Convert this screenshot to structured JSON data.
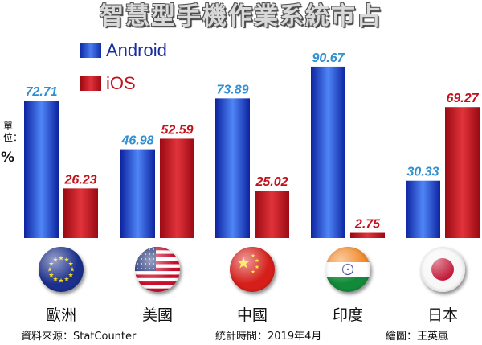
{
  "title": "智慧型手機作業系統市占",
  "unit": {
    "label": "單位：",
    "value": "%"
  },
  "colors": {
    "android": "#2b4fd6",
    "ios": "#c4121c",
    "android_label": "#2f8fd0",
    "ios_label": "#c4121c"
  },
  "footer": {
    "source": "資料來源：StatCounter",
    "date": "統計時間：2019年4月",
    "credit": "繪圖：王英嵐"
  },
  "chart_data": {
    "type": "bar",
    "title": "智慧型手機作業系統市占",
    "ylabel": "單位：%",
    "categories": [
      "歐洲",
      "美國",
      "中國",
      "印度",
      "日本"
    ],
    "series": [
      {
        "name": "Android",
        "values": [
          72.71,
          46.98,
          73.89,
          90.67,
          30.33
        ],
        "labels": [
          "72.71",
          "46.98",
          "73.89",
          "90.67",
          "30.33"
        ]
      },
      {
        "name": "iOS",
        "values": [
          26.23,
          52.59,
          25.02,
          2.75,
          69.27
        ],
        "labels": [
          "26.23",
          "52.59",
          "25.02",
          "2.75",
          "69.27"
        ]
      }
    ],
    "ylim": [
      0,
      100
    ],
    "grid": false,
    "legend": "top-left"
  },
  "flags": [
    "eu-flag-icon",
    "us-flag-icon",
    "china-flag-icon",
    "india-flag-icon",
    "japan-flag-icon"
  ]
}
